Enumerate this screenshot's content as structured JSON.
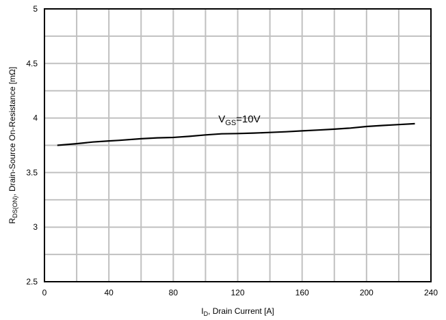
{
  "chart_data": {
    "type": "line",
    "xlabel": {
      "main": "I",
      "sub": "D",
      "rest": ", Drain Current [A]"
    },
    "ylabel": {
      "main": "R",
      "sub": "DS(ON)",
      "rest": ", Drain-Source On-Resistance [mΩ]"
    },
    "xlim": [
      0,
      240
    ],
    "ylim": [
      2.5,
      5
    ],
    "x_major_ticks": [
      0,
      40,
      80,
      120,
      160,
      200,
      240
    ],
    "x_gridlines_every": 20,
    "y_major_ticks": [
      2.5,
      3,
      3.5,
      4,
      4.5,
      5
    ],
    "y_tick_labels": [
      "2.5",
      "3",
      "3.5",
      "4",
      "4.5",
      "5"
    ],
    "y_gridlines_every": 0.25,
    "grid": true,
    "series": [
      {
        "annotation": {
          "main": "V",
          "sub": "GS",
          "rest": "=10V"
        },
        "annotation_at": {
          "x": 108,
          "y": 3.96
        },
        "color": "#000000",
        "x": [
          8,
          20,
          30,
          40,
          46,
          60,
          70,
          80,
          90,
          100,
          110,
          120,
          130,
          140,
          150,
          160,
          170,
          180,
          190,
          200,
          210,
          220,
          230
        ],
        "y": [
          3.75,
          3.765,
          3.78,
          3.79,
          3.795,
          3.81,
          3.818,
          3.822,
          3.832,
          3.845,
          3.855,
          3.858,
          3.862,
          3.868,
          3.874,
          3.882,
          3.89,
          3.898,
          3.908,
          3.922,
          3.932,
          3.94,
          3.948
        ]
      }
    ]
  }
}
